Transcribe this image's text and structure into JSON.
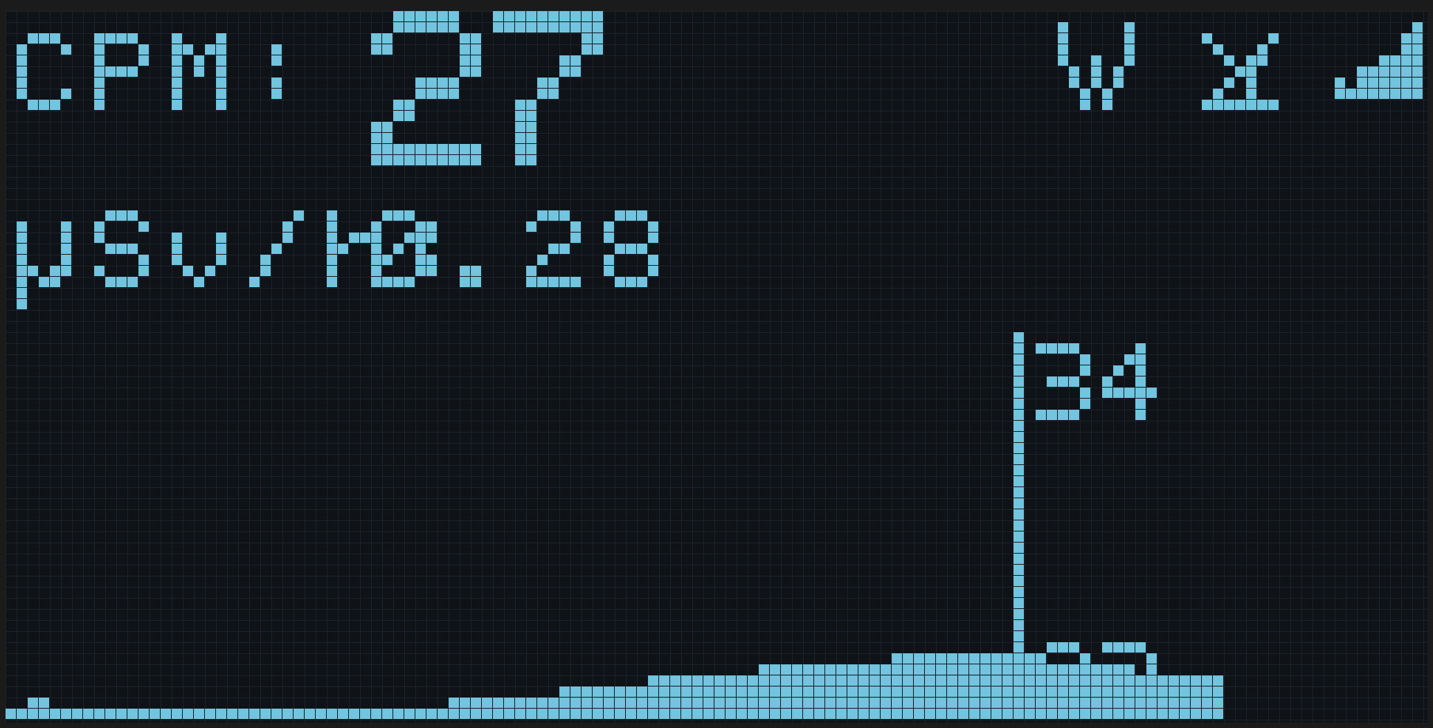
{
  "display": {
    "cpm_label": "CPM:",
    "cpm_value": "27",
    "dose_label": "µSv/h:",
    "dose_value": "0.28",
    "status_icons": [
      "wifi-icon",
      "battery-icon",
      "signal-strength-icon"
    ],
    "pixel_color": "#72c4df",
    "background_color": "#0f1216",
    "grid_color": "#1c242c"
  },
  "chart_data": {
    "type": "area",
    "ylim": [
      23,
      34
    ],
    "tick_labels": {
      "max": "34",
      "min": "23"
    },
    "values": [
      23.6,
      23.7,
      23.6,
      23.4,
      23.3,
      23.3,
      23.2,
      23.2,
      23.1,
      23.2,
      23.2,
      23.1,
      23.0,
      22.9,
      22.8,
      22.9,
      23.1,
      23.1,
      23.2,
      23.5,
      23.7,
      23.8,
      23.8,
      23.9,
      24.0,
      24.1,
      24.2,
      24.3,
      24.4,
      24.5,
      24.6,
      24.7,
      24.8,
      24.9,
      25.0,
      25.0,
      25.1,
      25.1,
      25.2,
      25.3,
      25.4,
      25.4,
      25.5,
      25.6,
      25.6,
      25.5,
      25.4,
      25.3,
      25.2,
      25.1,
      25.0,
      24.9,
      24.8,
      24.7,
      24.6
    ]
  }
}
